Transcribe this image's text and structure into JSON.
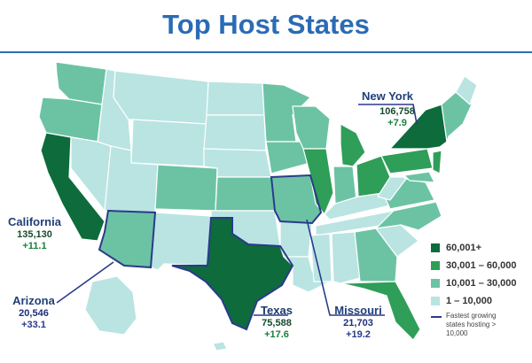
{
  "title": "Top Host States",
  "colors": {
    "tier1": "#0d6b3c",
    "tier2": "#2f9e58",
    "tier3": "#6cc3a3",
    "tier4": "#b9e4e2",
    "callout": "#2b3a8c",
    "title": "#2b6bb5"
  },
  "highlights": {
    "new_york": {
      "name": "New York",
      "value": "106,758",
      "growth": "+7.9"
    },
    "california": {
      "name": "California",
      "value": "135,130",
      "growth": "+11.1"
    },
    "arizona": {
      "name": "Arizona",
      "value": "20,546",
      "growth": "+33.1"
    },
    "texas": {
      "name": "Texas",
      "value": "75,588",
      "growth": "+17.6"
    },
    "missouri": {
      "name": "Missouri",
      "value": "21,703",
      "growth": "+19.2"
    }
  },
  "legend": {
    "items": [
      {
        "label": "60,001+",
        "color": "#0d6b3c"
      },
      {
        "label": "30,001 – 60,000",
        "color": "#2f9e58"
      },
      {
        "label": "10,001 – 30,000",
        "color": "#6cc3a3"
      },
      {
        "label": "1 – 10,000",
        "color": "#b9e4e2"
      }
    ],
    "line_label": "Fastest growing states hosting > 10,000"
  }
}
